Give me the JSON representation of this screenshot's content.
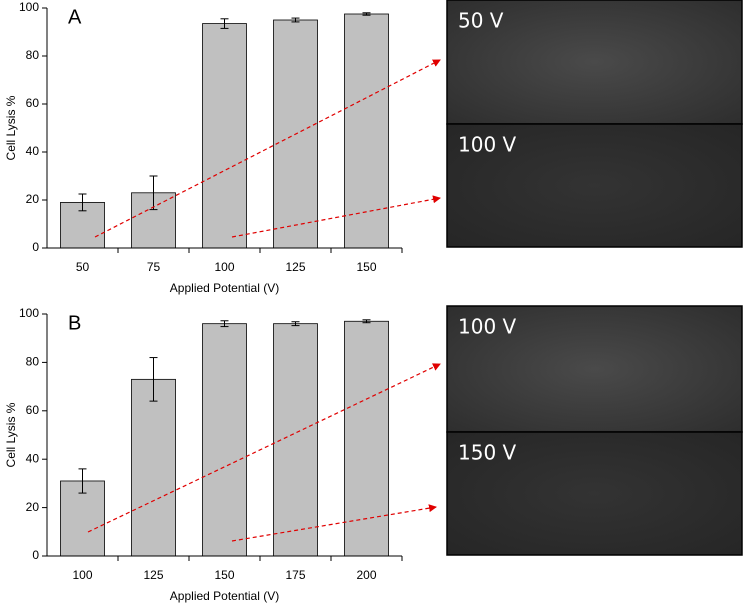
{
  "chart_data": [
    {
      "type": "bar",
      "panel_label": "A",
      "ylabel": "Cell Lysis %",
      "xlabel": "Applied Potential (V)",
      "categories": [
        "50",
        "75",
        "100",
        "125",
        "150"
      ],
      "values": [
        19,
        23,
        93.5,
        95,
        97.5
      ],
      "errors": [
        3.5,
        7,
        2,
        0.8,
        0.5
      ],
      "color": "#c0c0c0",
      "ylim": [
        0,
        100
      ],
      "yticks": [
        0,
        20,
        40,
        60,
        80,
        100
      ],
      "images": [
        {
          "label": "50 V"
        },
        {
          "label": "100 V"
        }
      ]
    },
    {
      "type": "bar",
      "panel_label": "B",
      "ylabel": "Cell Lysis %",
      "xlabel": "Applied Potential (V)",
      "categories": [
        "100",
        "125",
        "150",
        "175",
        "200"
      ],
      "values": [
        31,
        73,
        96,
        96,
        97
      ],
      "errors": [
        5,
        9,
        1.2,
        0.8,
        0.6
      ],
      "color": "#c0c0c0",
      "ylim": [
        0,
        100
      ],
      "yticks": [
        0,
        20,
        40,
        60,
        80,
        100
      ],
      "images": [
        {
          "label": "100 V"
        },
        {
          "label": "150 V"
        }
      ]
    }
  ]
}
